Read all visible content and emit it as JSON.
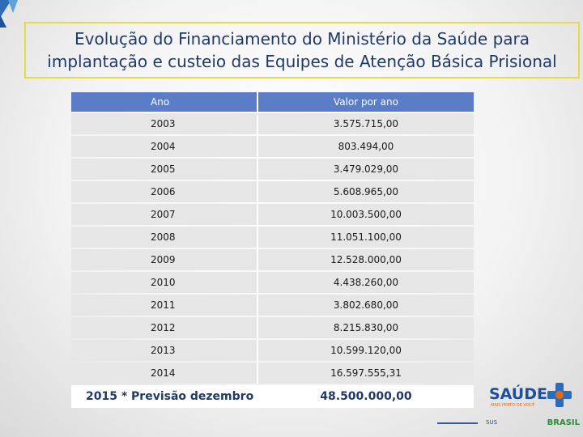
{
  "title": {
    "line1": "Evolução do Financiamento do Ministério da Saúde para",
    "line2": "implantação e custeio das Equipes de Atenção Básica Prisional"
  },
  "table": {
    "headers": [
      "Ano",
      "Valor por ano"
    ],
    "rows": [
      [
        "2003",
        "3.575.715,00"
      ],
      [
        "2004",
        "803.494,00"
      ],
      [
        "2005",
        "3.479.029,00"
      ],
      [
        "2006",
        "5.608.965,00"
      ],
      [
        "2007",
        "10.003.500,00"
      ],
      [
        "2008",
        "11.051.100,00"
      ],
      [
        "2009",
        "12.528.000,00"
      ],
      [
        "2010",
        "4.438.260,00"
      ],
      [
        "2011",
        "3.802.680,00"
      ],
      [
        "2012",
        "8.215.830,00"
      ],
      [
        "2013",
        "10.599.120,00"
      ],
      [
        "2014",
        "16.597.555,31"
      ]
    ],
    "last_row": [
      "2015 * Previsão dezembro",
      "48.500.000,00"
    ]
  },
  "logo": {
    "name": "SAÚDE",
    "tagline": "MAIS PERTO DE VOCÊ",
    "footer_left": "SUS",
    "footer_right": "BRASIL"
  },
  "colors": {
    "header_bg": "#5b7cc6",
    "title_text": "#1f3a66",
    "title_border": "#e8d84a",
    "row_bg": "#e6e6e6"
  },
  "icons": [
    "corner-triangle-icon",
    "cross-icon"
  ]
}
